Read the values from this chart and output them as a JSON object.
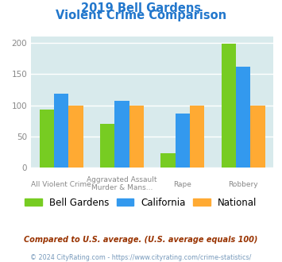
{
  "title_line1": "2019 Bell Gardens",
  "title_line2": "Violent Crime Comparison",
  "cat_labels_line1": [
    "All Violent Crime",
    "Aggravated Assault",
    "Rape",
    "Robbery"
  ],
  "cat_labels_line2": [
    "",
    "Murder & Mans...",
    "",
    ""
  ],
  "bell_gardens": [
    93,
    70,
    23,
    199
  ],
  "california": [
    118,
    107,
    87,
    162
  ],
  "national": [
    100,
    100,
    100,
    100
  ],
  "bar_colors": [
    "#77cc22",
    "#3399ee",
    "#ffaa33"
  ],
  "legend_labels": [
    "Bell Gardens",
    "California",
    "National"
  ],
  "ylim": [
    0,
    210
  ],
  "yticks": [
    0,
    50,
    100,
    150,
    200
  ],
  "title_color": "#2277cc",
  "bg_color": "#d8eaec",
  "footnote1": "Compared to U.S. average. (U.S. average equals 100)",
  "footnote2": "© 2024 CityRating.com - https://www.cityrating.com/crime-statistics/",
  "footnote1_color": "#993300",
  "footnote2_color": "#7799bb"
}
